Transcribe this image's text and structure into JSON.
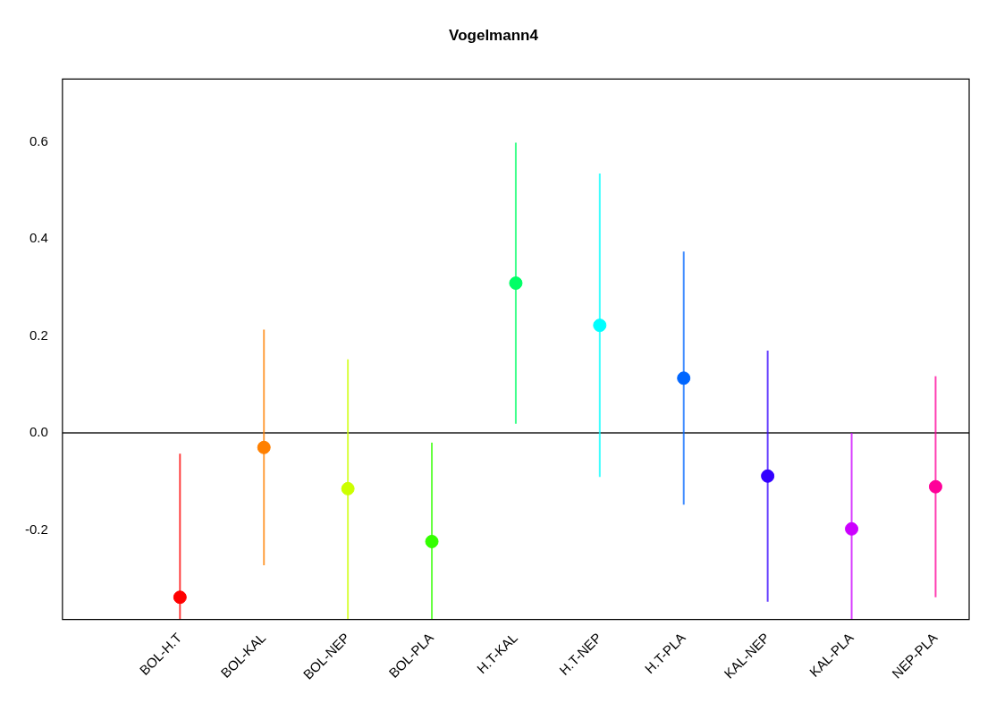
{
  "chart_data": {
    "type": "scatter",
    "title": "Vogelmann4",
    "categories": [
      null,
      "BOL-H.T",
      "BOL-KAL",
      "BOL-NEP",
      "BOL-PLA",
      "H.T-KAL",
      "H.T-NEP",
      "H.T-PLA",
      "KAL-NEP",
      "KAL-PLA",
      "NEP-PLA"
    ],
    "values": [
      null,
      -0.339,
      -0.03,
      -0.115,
      -0.224,
      0.309,
      0.222,
      0.113,
      -0.089,
      -0.198,
      -0.111
    ],
    "errors": [
      null,
      [
        -0.385,
        -0.043
      ],
      0.243,
      [
        -0.385,
        0.152
      ],
      [
        -0.385,
        -0.02
      ],
      0.29,
      0.313,
      0.261,
      0.259,
      [
        -0.385,
        0.0
      ],
      0.228
    ],
    "colors": [
      "#000000",
      "#ff0000",
      "#ff8000",
      "#ccff00",
      "#33ff00",
      "#00ff66",
      "#00ffff",
      "#0066ff",
      "#3300ff",
      "#cc00ff",
      "#ff0099"
    ],
    "marker": "circle",
    "ylim": [
      -0.385,
      0.73
    ],
    "yticks": [
      {
        "value": -0.2,
        "label": "-0.2"
      },
      {
        "value": 0,
        "label": "0.0"
      },
      {
        "value": 0.2,
        "label": "0.2"
      },
      {
        "value": 0.4,
        "label": "0.4"
      },
      {
        "value": 0.6,
        "label": "0.6"
      }
    ],
    "ref_lines": [
      {
        "axis": "y",
        "value": 0,
        "label": null,
        "color": "#555555"
      }
    ],
    "grid": false,
    "legend": false
  }
}
